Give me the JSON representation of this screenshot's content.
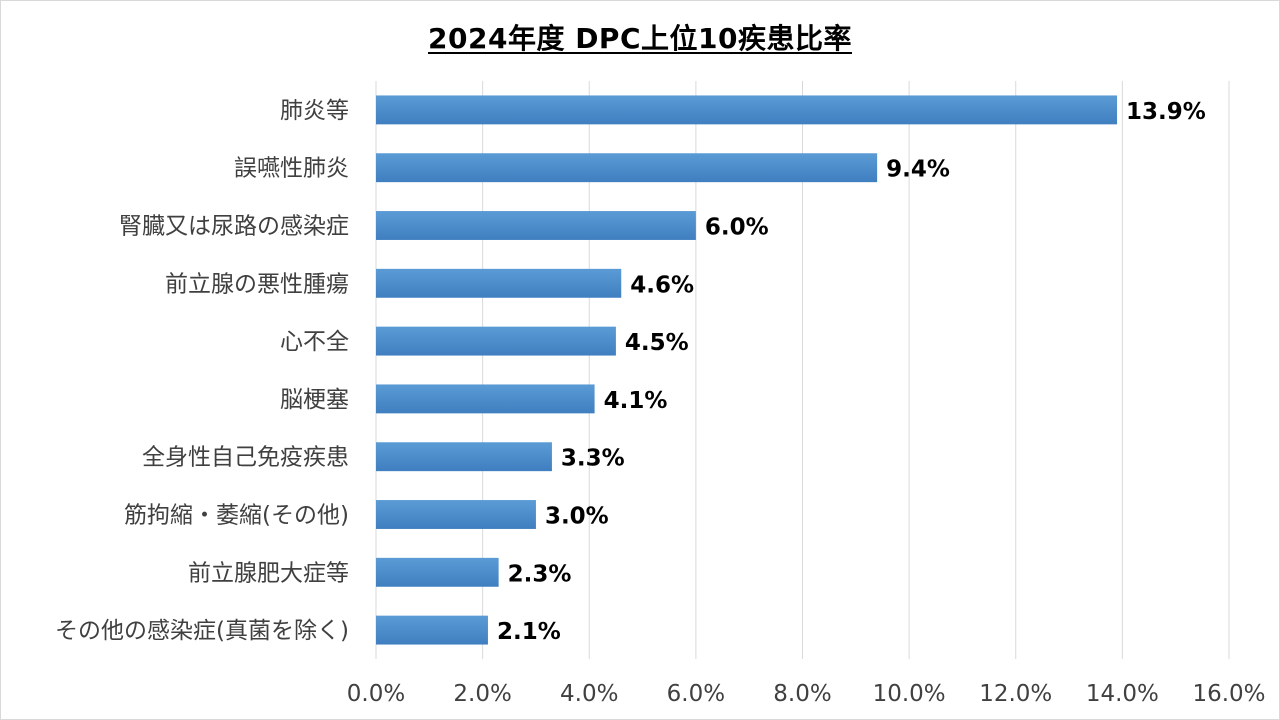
{
  "chart_data": {
    "type": "bar",
    "orientation": "horizontal",
    "title": "2024年度 DPC上位10疾患比率",
    "categories": [
      "肺炎等",
      "誤嚥性肺炎",
      "腎臓又は尿路の感染症",
      "前立腺の悪性腫瘍",
      "心不全",
      "脳梗塞",
      "全身性自己免疫疾患",
      "筋拘縮・萎縮(その他)",
      "前立腺肥大症等",
      "その他の感染症(真菌を除く)"
    ],
    "values": [
      13.9,
      9.4,
      6.0,
      4.6,
      4.5,
      4.1,
      3.3,
      3.0,
      2.3,
      2.1
    ],
    "data_labels": [
      "13.9%",
      "9.4%",
      "6.0%",
      "4.6%",
      "4.5%",
      "4.1%",
      "3.3%",
      "3.0%",
      "2.3%",
      "2.1%"
    ],
    "xlim": [
      0,
      16
    ],
    "x_ticks": [
      0,
      2,
      4,
      6,
      8,
      10,
      12,
      14,
      16
    ],
    "x_tick_labels": [
      "0.0%",
      "2.0%",
      "4.0%",
      "6.0%",
      "8.0%",
      "10.0%",
      "12.0%",
      "14.0%",
      "16.0%"
    ],
    "grid": "vertical",
    "legend": "none",
    "bar_color_top": "#5b9bd5",
    "bar_color_bottom": "#3f7fc0"
  }
}
